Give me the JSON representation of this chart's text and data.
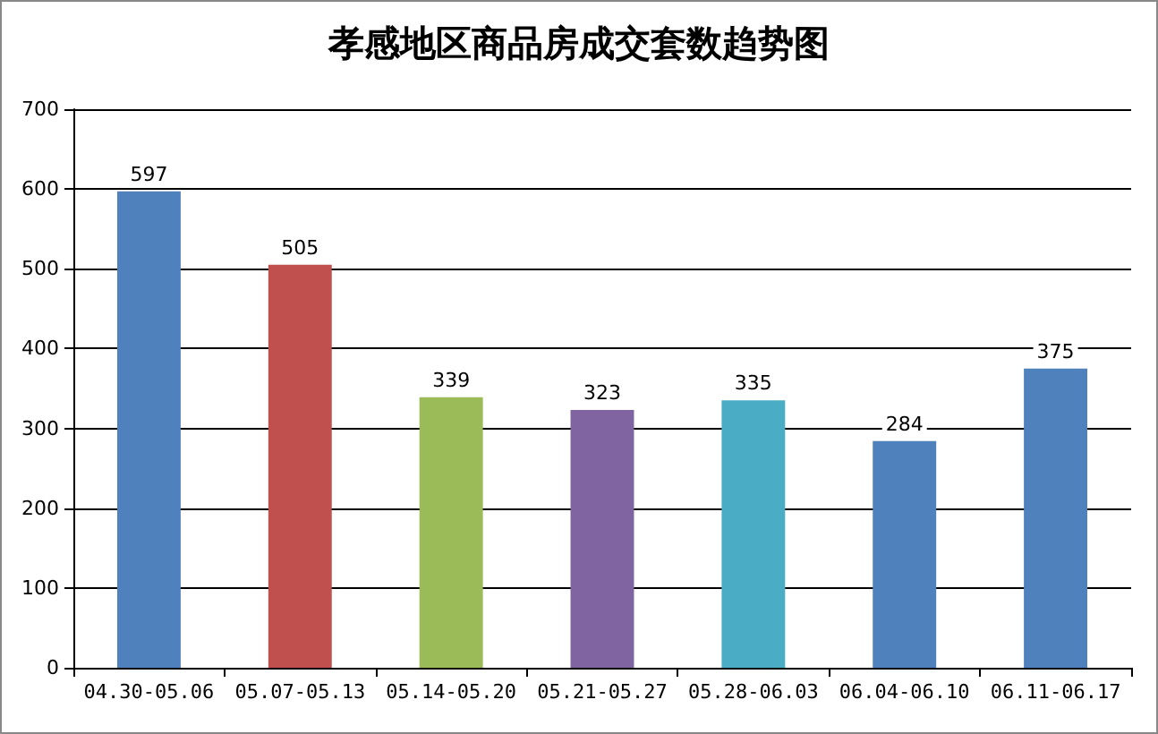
{
  "chart_data": {
    "type": "bar",
    "title": "孝感地区商品房成交套数趋势图",
    "categories": [
      "04.30-05.06",
      "05.07-05.13",
      "05.14-05.20",
      "05.21-05.27",
      "05.28-06.03",
      "06.04-06.10",
      "06.11-06.17"
    ],
    "values": [
      597,
      505,
      339,
      323,
      335,
      284,
      375
    ],
    "colors": [
      "#4f81bd",
      "#c0504d",
      "#9bbb59",
      "#8064a2",
      "#4bacc6",
      "#4f81bd",
      "#4f81bd"
    ],
    "ylim": [
      0,
      700
    ],
    "yticks": [
      0,
      100,
      200,
      300,
      400,
      500,
      600,
      700
    ],
    "grid": "y",
    "data_labels": true
  }
}
